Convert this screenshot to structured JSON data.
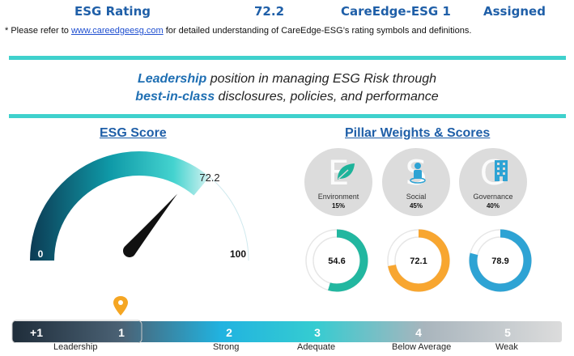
{
  "header": {
    "label": "ESG Rating",
    "score": "72.2",
    "rating": "CareEdge-ESG 1",
    "status": "Assigned"
  },
  "note": {
    "prefix": "* Please refer to ",
    "link": "www.careedgeesg.com",
    "suffix": " for detailed understanding of CareEdge-ESG’s rating symbols and definitions."
  },
  "tagline": {
    "word1": "Leadership",
    "rest1": " position in managing ESG Risk through",
    "word2": "best-in-class",
    "rest2": " disclosures, policies, and performance"
  },
  "esg_score": {
    "title": "ESG Score",
    "value": 72.2,
    "value_label": "72.2",
    "min_label": "0",
    "max_label": "100"
  },
  "pillars": {
    "title": "Pillar Weights & Scores",
    "items": [
      {
        "letter": "E",
        "name": "Environment",
        "weight": "15%",
        "score": 54.6,
        "score_label": "54.6",
        "color": "#22b7a0",
        "icon": "leaf-icon"
      },
      {
        "letter": "S",
        "name": "Social",
        "weight": "45%",
        "score": 72.1,
        "score_label": "72.1",
        "color": "#f8a630",
        "icon": "person-icon"
      },
      {
        "letter": "G",
        "name": "Governance",
        "weight": "40%",
        "score": 78.9,
        "score_label": "78.9",
        "color": "#2ea3d4",
        "icon": "building-icon"
      }
    ]
  },
  "scale": {
    "marker_icon": "location-pin-icon",
    "marker_color": "#f5a623",
    "ticks": [
      "+1",
      "1",
      "2",
      "3",
      "4",
      "5"
    ],
    "labels": [
      "Leadership",
      "Strong",
      "Adequate",
      "Below Average",
      "Weak"
    ]
  }
}
